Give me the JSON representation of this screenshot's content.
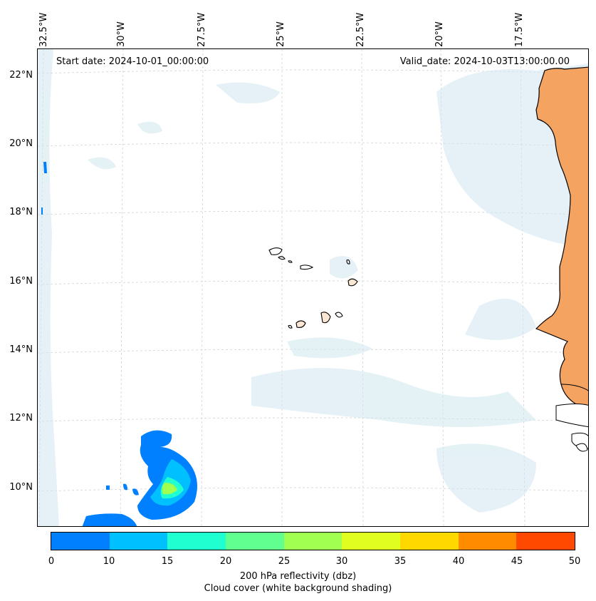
{
  "header": {
    "start_date": "Start date: 2024-10-01_00:00:00",
    "valid_date": "Valid_date: 2024-10-03T13:00:00.00"
  },
  "map": {
    "lon_ticks": [
      "32.5°W",
      "30°W",
      "27.5°W",
      "25°W",
      "22.5°W",
      "20°W",
      "17.5°W"
    ],
    "lat_ticks": [
      "22°N",
      "20°N",
      "18°N",
      "16°N",
      "14°N",
      "12°N",
      "10°N"
    ],
    "land_color": "#f4a460",
    "cloud_color": "#cfe6ee"
  },
  "colorbar": {
    "ticks": [
      "0",
      "10",
      "15",
      "20",
      "25",
      "30",
      "35",
      "40",
      "45",
      "50"
    ],
    "colors": [
      "#0080ff",
      "#00c0ff",
      "#20ffd0",
      "#60ff90",
      "#a0ff50",
      "#e0ff20",
      "#ffd800",
      "#ff8c00",
      "#ff4800"
    ],
    "label": "200 hPa reflectivity (dbz)",
    "sublabel": "Cloud cover (white background shading)"
  }
}
